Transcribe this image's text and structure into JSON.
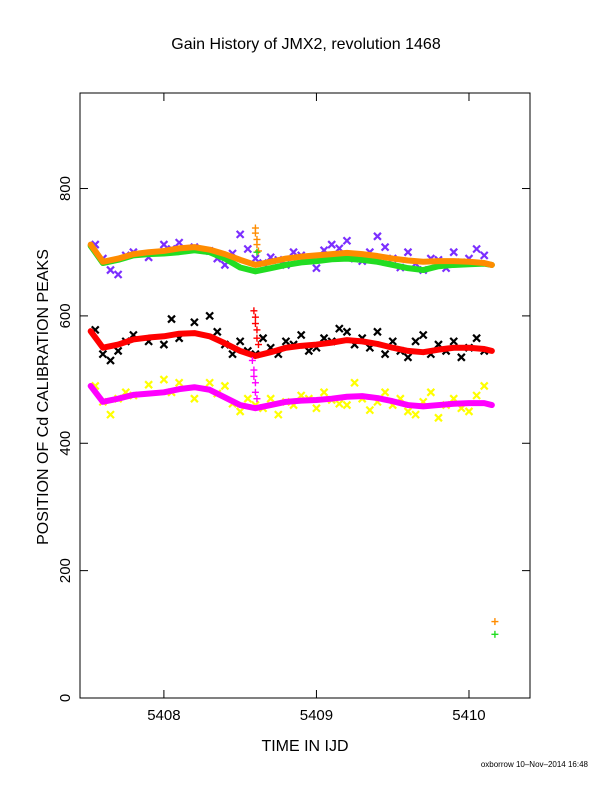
{
  "chart_data": {
    "type": "scatter",
    "title": "Gain History of JMX2, revolution 1468",
    "xlabel": "TIME IN IJD",
    "ylabel": "POSITION OF Cd CALIBRATION PEAKS",
    "xlim": [
      5407.45,
      5410.4
    ],
    "ylim": [
      0,
      950
    ],
    "x_ticks": [
      5408,
      5409,
      5410
    ],
    "y_ticks": [
      0,
      200,
      400,
      600,
      800
    ],
    "grid": false,
    "legend": "none",
    "series": [
      {
        "color": "#7b2fff",
        "marker": "x",
        "kind": "scatter",
        "x": [
          5407.55,
          5407.6,
          5407.65,
          5407.7,
          5407.75,
          5407.8,
          5407.9,
          5408.0,
          5408.05,
          5408.1,
          5408.2,
          5408.3,
          5408.35,
          5408.4,
          5408.45,
          5408.5,
          5408.55,
          5408.6,
          5408.65,
          5408.7,
          5408.75,
          5408.8,
          5408.85,
          5408.9,
          5408.95,
          5409.0,
          5409.05,
          5409.1,
          5409.15,
          5409.2,
          5409.25,
          5409.3,
          5409.35,
          5409.4,
          5409.45,
          5409.5,
          5409.55,
          5409.6,
          5409.65,
          5409.7,
          5409.75,
          5409.8,
          5409.85,
          5409.9,
          5409.95,
          5410.0,
          5410.05,
          5410.1
        ],
        "y": [
          712,
          690,
          672,
          665,
          695,
          700,
          692,
          712,
          705,
          715,
          708,
          702,
          690,
          680,
          698,
          728,
          705,
          690,
          683,
          692,
          688,
          680,
          700,
          695,
          690,
          675,
          703,
          712,
          706,
          718,
          690,
          686,
          700,
          725,
          708,
          690,
          676,
          700,
          682,
          672,
          690,
          688,
          675,
          700,
          684,
          690,
          705,
          695
        ]
      },
      {
        "color": "#22dd22",
        "marker": "line",
        "kind": "line",
        "x": [
          5407.52,
          5407.6,
          5407.7,
          5407.8,
          5407.9,
          5408.0,
          5408.1,
          5408.2,
          5408.3,
          5408.4,
          5408.5,
          5408.6,
          5408.7,
          5408.8,
          5408.9,
          5409.0,
          5409.1,
          5409.2,
          5409.3,
          5409.4,
          5409.5,
          5409.6,
          5409.7,
          5409.8,
          5409.9,
          5410.0,
          5410.1,
          5410.15
        ],
        "y": [
          710,
          683,
          688,
          695,
          697,
          698,
          700,
          703,
          700,
          690,
          676,
          670,
          675,
          680,
          684,
          686,
          689,
          690,
          688,
          685,
          680,
          675,
          672,
          678,
          680,
          681,
          682,
          680
        ]
      },
      {
        "color": "#ff8c00",
        "marker": "line",
        "kind": "line",
        "x": [
          5407.52,
          5407.6,
          5407.7,
          5407.8,
          5407.9,
          5408.0,
          5408.1,
          5408.2,
          5408.3,
          5408.4,
          5408.5,
          5408.6,
          5408.7,
          5408.8,
          5408.9,
          5409.0,
          5409.1,
          5409.2,
          5409.3,
          5409.4,
          5409.5,
          5409.6,
          5409.7,
          5409.8,
          5409.9,
          5410.0,
          5410.1,
          5410.15
        ],
        "y": [
          712,
          685,
          690,
          697,
          700,
          702,
          706,
          708,
          704,
          697,
          688,
          680,
          685,
          690,
          693,
          695,
          697,
          699,
          697,
          694,
          690,
          687,
          685,
          686,
          686,
          685,
          683,
          680
        ]
      },
      {
        "color": "#000000",
        "marker": "x",
        "kind": "scatter",
        "x": [
          5407.55,
          5407.6,
          5407.65,
          5407.7,
          5407.75,
          5407.8,
          5407.9,
          5408.0,
          5408.05,
          5408.1,
          5408.2,
          5408.3,
          5408.35,
          5408.4,
          5408.45,
          5408.5,
          5408.55,
          5408.6,
          5408.65,
          5408.7,
          5408.75,
          5408.8,
          5408.85,
          5408.9,
          5408.95,
          5409.0,
          5409.05,
          5409.1,
          5409.15,
          5409.2,
          5409.25,
          5409.3,
          5409.35,
          5409.4,
          5409.45,
          5409.5,
          5409.55,
          5409.6,
          5409.65,
          5409.7,
          5409.75,
          5409.8,
          5409.85,
          5409.9,
          5409.95,
          5410.0,
          5410.05,
          5410.1
        ],
        "y": [
          578,
          540,
          530,
          545,
          560,
          570,
          560,
          555,
          595,
          565,
          590,
          600,
          575,
          555,
          540,
          560,
          545,
          540,
          565,
          550,
          540,
          560,
          555,
          570,
          545,
          550,
          565,
          560,
          580,
          575,
          555,
          565,
          550,
          575,
          540,
          560,
          545,
          535,
          560,
          570,
          540,
          555,
          545,
          560,
          535,
          550,
          565,
          545
        ]
      },
      {
        "color": "#ff0000",
        "marker": "line",
        "kind": "line",
        "x": [
          5407.52,
          5407.6,
          5407.7,
          5407.8,
          5407.9,
          5408.0,
          5408.1,
          5408.2,
          5408.3,
          5408.4,
          5408.5,
          5408.6,
          5408.7,
          5408.8,
          5408.9,
          5409.0,
          5409.1,
          5409.2,
          5409.3,
          5409.4,
          5409.5,
          5409.6,
          5409.7,
          5409.8,
          5409.9,
          5410.0,
          5410.1,
          5410.15
        ],
        "y": [
          576,
          550,
          555,
          563,
          566,
          568,
          572,
          573,
          568,
          557,
          545,
          537,
          543,
          550,
          553,
          555,
          558,
          562,
          560,
          556,
          550,
          545,
          543,
          547,
          550,
          550,
          548,
          545
        ]
      },
      {
        "color": "#ffff00",
        "marker": "x",
        "kind": "scatter",
        "x": [
          5407.55,
          5407.6,
          5407.65,
          5407.7,
          5407.75,
          5407.8,
          5407.9,
          5408.0,
          5408.05,
          5408.1,
          5408.2,
          5408.3,
          5408.35,
          5408.4,
          5408.45,
          5408.5,
          5408.55,
          5408.6,
          5408.65,
          5408.7,
          5408.75,
          5408.8,
          5408.85,
          5408.9,
          5408.95,
          5409.0,
          5409.05,
          5409.1,
          5409.15,
          5409.2,
          5409.25,
          5409.3,
          5409.35,
          5409.4,
          5409.45,
          5409.5,
          5409.55,
          5409.6,
          5409.65,
          5409.7,
          5409.75,
          5409.8,
          5409.85,
          5409.9,
          5409.95,
          5410.0,
          5410.05,
          5410.1
        ],
        "y": [
          490,
          465,
          445,
          470,
          480,
          475,
          492,
          500,
          480,
          495,
          470,
          495,
          478,
          490,
          462,
          450,
          470,
          460,
          455,
          470,
          445,
          465,
          460,
          475,
          470,
          455,
          480,
          468,
          462,
          460,
          495,
          470,
          452,
          465,
          480,
          460,
          470,
          450,
          445,
          465,
          480,
          440,
          460,
          470,
          455,
          450,
          475,
          490
        ]
      },
      {
        "color": "#ff00ff",
        "marker": "line",
        "kind": "line",
        "x": [
          5407.52,
          5407.6,
          5407.7,
          5407.8,
          5407.9,
          5408.0,
          5408.1,
          5408.2,
          5408.3,
          5408.4,
          5408.5,
          5408.6,
          5408.7,
          5408.8,
          5408.9,
          5409.0,
          5409.1,
          5409.2,
          5409.3,
          5409.4,
          5409.5,
          5409.6,
          5409.7,
          5409.8,
          5409.9,
          5410.0,
          5410.1,
          5410.15
        ],
        "y": [
          490,
          465,
          470,
          476,
          478,
          480,
          485,
          488,
          484,
          472,
          460,
          455,
          460,
          465,
          467,
          468,
          470,
          473,
          474,
          471,
          466,
          460,
          458,
          460,
          462,
          463,
          463,
          460
        ]
      },
      {
        "color": "#ff8c00",
        "marker": "+",
        "kind": "scatter",
        "x": [
          5408.6,
          5408.6,
          5408.61,
          5408.61,
          5408.62,
          5410.17
        ],
        "y": [
          738,
          730,
          720,
          712,
          702,
          120
        ]
      },
      {
        "color": "#22dd22",
        "marker": "+",
        "kind": "scatter",
        "x": [
          5408.61,
          5410.17
        ],
        "y": [
          700,
          100
        ]
      },
      {
        "color": "#ff0000",
        "marker": "+",
        "kind": "scatter",
        "x": [
          5408.59,
          5408.6,
          5408.6,
          5408.61,
          5408.61,
          5408.62
        ],
        "y": [
          608,
          598,
          588,
          578,
          565,
          555
        ]
      },
      {
        "color": "#ff00ff",
        "marker": "+",
        "kind": "scatter",
        "x": [
          5408.58,
          5408.59,
          5408.59,
          5408.6,
          5408.6,
          5408.61
        ],
        "y": [
          530,
          515,
          505,
          495,
          480,
          470
        ]
      }
    ]
  },
  "footer": "oxborrow 10–Nov–2014 16:48"
}
